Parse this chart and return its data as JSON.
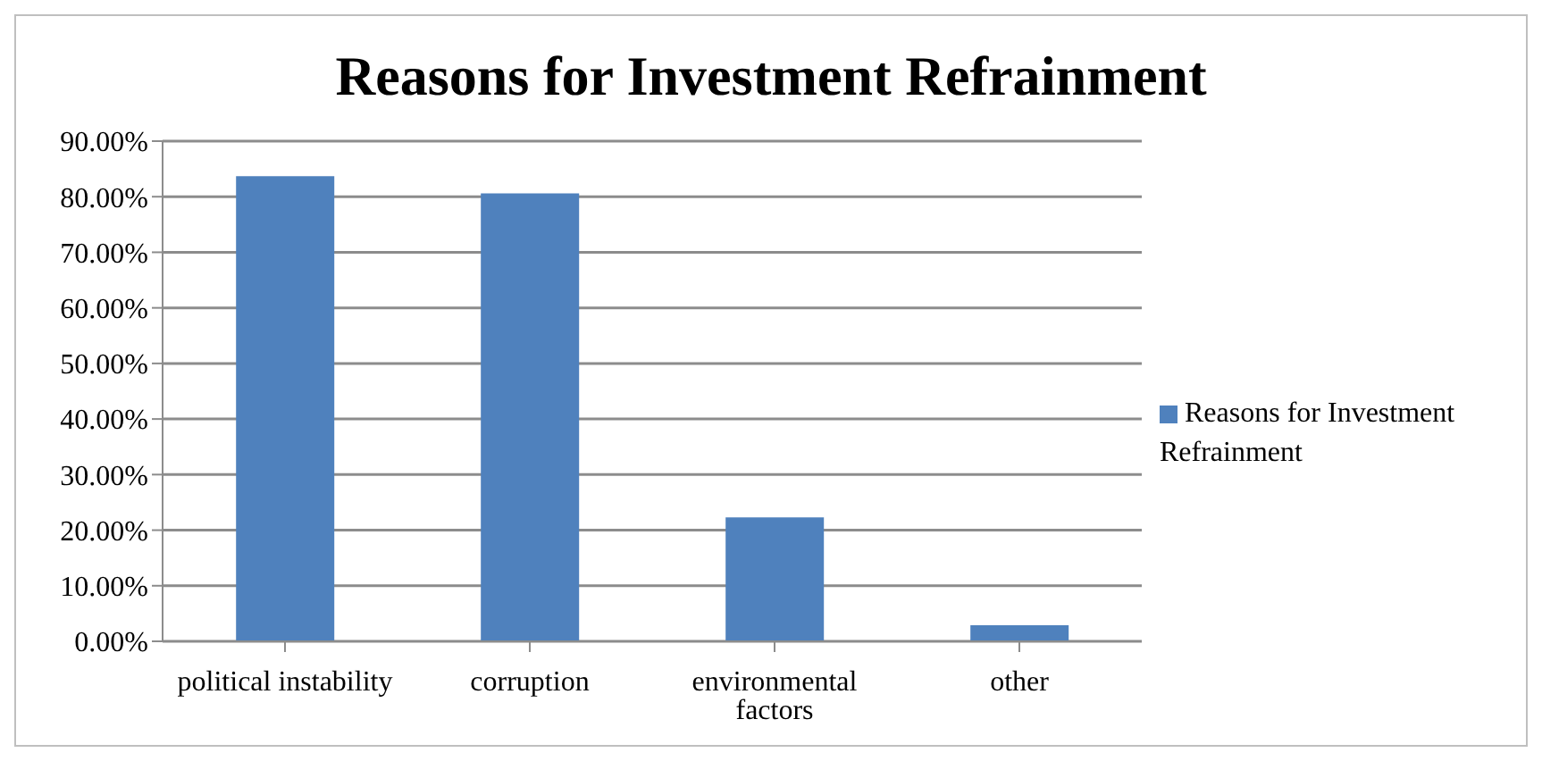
{
  "chart_data": {
    "type": "bar",
    "title": "Reasons for Investment Refrainment",
    "categories": [
      "political instability",
      "corruption",
      "environmental factors",
      "other"
    ],
    "series": [
      {
        "name": "Reasons for Investment Refrainment",
        "color": "#4f81bd",
        "values": [
          83.7,
          80.6,
          22.3,
          2.9
        ]
      }
    ],
    "ylim": [
      0,
      90
    ],
    "yticks": [
      {
        "value": 0,
        "label": "0.00%"
      },
      {
        "value": 10,
        "label": "10.00%"
      },
      {
        "value": 20,
        "label": "20.00%"
      },
      {
        "value": 30,
        "label": "30.00%"
      },
      {
        "value": 40,
        "label": "40.00%"
      },
      {
        "value": 50,
        "label": "50.00%"
      },
      {
        "value": 60,
        "label": "60.00%"
      },
      {
        "value": 70,
        "label": "70.00%"
      },
      {
        "value": 80,
        "label": "80.00%"
      },
      {
        "value": 90,
        "label": "90.00%"
      }
    ],
    "grid": "y",
    "legend": "right"
  }
}
